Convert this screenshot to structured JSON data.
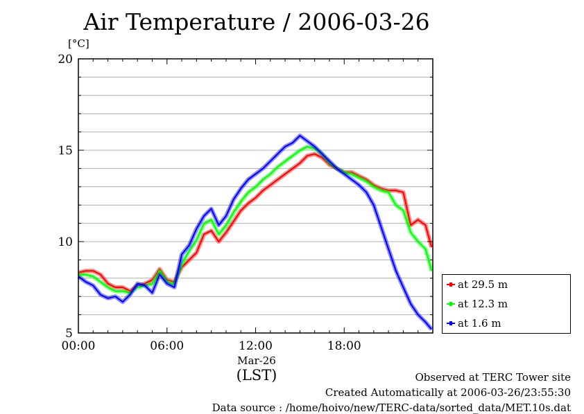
{
  "chart_data": {
    "type": "line",
    "title": "Air Temperature / 2006-03-26",
    "ylabel": "[°C]",
    "xlabel": "(LST)",
    "x_date_label": "Mar-26",
    "ylim": [
      5,
      20
    ],
    "xlim": [
      "00:00",
      "24:00"
    ],
    "y_ticks": [
      "5",
      "10",
      "15",
      "20"
    ],
    "x_ticks": [
      "00:00",
      "06:00",
      "12:00",
      "18:00"
    ],
    "grid": true,
    "legend_position": "right",
    "x": [
      "00:00",
      "00:30",
      "01:00",
      "01:30",
      "02:00",
      "02:30",
      "03:00",
      "03:30",
      "04:00",
      "04:30",
      "05:00",
      "05:30",
      "06:00",
      "06:30",
      "07:00",
      "07:30",
      "08:00",
      "08:30",
      "09:00",
      "09:30",
      "10:00",
      "10:30",
      "11:00",
      "11:30",
      "12:00",
      "12:30",
      "13:00",
      "13:30",
      "14:00",
      "14:30",
      "15:00",
      "15:30",
      "16:00",
      "16:30",
      "17:00",
      "17:30",
      "18:00",
      "18:30",
      "19:00",
      "19:30",
      "20:00",
      "20:30",
      "21:00",
      "21:30",
      "22:00",
      "22:30",
      "23:00",
      "23:30",
      "23:55"
    ],
    "series": [
      {
        "name": "at 29.5 m",
        "color": "#ff0000",
        "values": [
          8.3,
          8.4,
          8.4,
          8.2,
          7.7,
          7.5,
          7.5,
          7.3,
          7.6,
          7.7,
          7.9,
          8.5,
          7.9,
          7.8,
          8.6,
          9.0,
          9.4,
          10.4,
          10.6,
          10.0,
          10.5,
          11.1,
          11.7,
          12.1,
          12.4,
          12.8,
          13.1,
          13.4,
          13.7,
          14.0,
          14.3,
          14.7,
          14.8,
          14.6,
          14.2,
          14.0,
          13.8,
          13.8,
          13.6,
          13.4,
          13.1,
          12.9,
          12.8,
          12.8,
          12.7,
          10.9,
          11.2,
          10.9,
          9.7
        ]
      },
      {
        "name": "at 12.3 m",
        "color": "#00ff00",
        "values": [
          8.2,
          8.2,
          8.1,
          7.8,
          7.5,
          7.3,
          7.3,
          7.2,
          7.5,
          7.6,
          7.7,
          8.4,
          7.8,
          7.7,
          8.8,
          9.5,
          10.1,
          11.0,
          11.2,
          10.4,
          10.9,
          11.6,
          12.2,
          12.7,
          13.0,
          13.4,
          13.7,
          14.1,
          14.4,
          14.7,
          15.0,
          15.2,
          15.1,
          14.8,
          14.3,
          14.0,
          13.8,
          13.7,
          13.5,
          13.3,
          13.0,
          12.8,
          12.7,
          12.0,
          11.7,
          10.5,
          10.0,
          9.6,
          8.4
        ]
      },
      {
        "name": "at 1.6 m",
        "color": "#0000ff",
        "values": [
          8.1,
          7.8,
          7.6,
          7.1,
          6.9,
          7.0,
          6.7,
          7.1,
          7.7,
          7.6,
          7.2,
          8.2,
          7.7,
          7.5,
          9.3,
          9.8,
          10.7,
          11.4,
          11.8,
          10.9,
          11.4,
          12.3,
          12.9,
          13.4,
          13.7,
          14.0,
          14.4,
          14.8,
          15.2,
          15.4,
          15.8,
          15.5,
          15.2,
          14.8,
          14.4,
          14.0,
          13.7,
          13.4,
          13.1,
          12.7,
          12.0,
          10.8,
          9.6,
          8.4,
          7.5,
          6.6,
          6.0,
          5.6,
          5.2
        ]
      }
    ]
  },
  "footer": {
    "site": "Observed at TERC Tower site",
    "created": "Created Automatically at 2006-03-26/23:55:30",
    "source": "Data source : /home/hoivo/new/TERC-data/sorted_data/MET.10s.dat"
  }
}
